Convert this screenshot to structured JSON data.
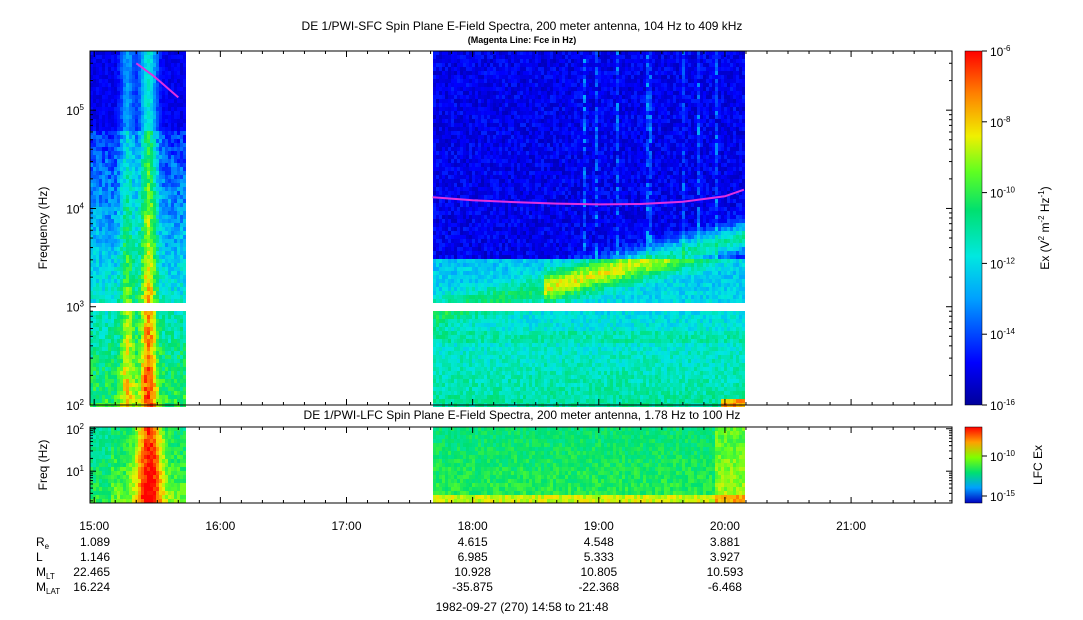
{
  "chart_data": [
    {
      "type": "heatmap",
      "title": "DE 1/PWI-SFC  Spin Plane E-Field Spectra, 200 meter antenna, 104 Hz to 409 kHz",
      "subtitle": "(Magenta Line: Fce in Hz)",
      "ylabel": "Frequency (Hz)",
      "yscale": "log",
      "ylim": [
        100,
        400000
      ],
      "y_ticks": [
        {
          "value": 100,
          "mant": "10",
          "exp": "2"
        },
        {
          "value": 1000,
          "mant": "10",
          "exp": "3"
        },
        {
          "value": 10000,
          "mant": "10",
          "exp": "4"
        },
        {
          "value": 100000,
          "mant": "10",
          "exp": "5"
        }
      ],
      "xlim": [
        "14:58",
        "21:48"
      ],
      "colorbar": {
        "label": "Ex (V",
        "label_sup1": "2",
        "label_mid": " m",
        "label_sup2": "-2",
        "label_mid2": " Hz",
        "label_sup3": "-1",
        "label_end": ")",
        "scale": "log",
        "range": [
          1e-16,
          1e-06
        ],
        "ticks": [
          {
            "value": 1e-06,
            "mant": "10",
            "exp": "-6"
          },
          {
            "value": 1e-08,
            "mant": "10",
            "exp": "-8"
          },
          {
            "value": 1e-10,
            "mant": "10",
            "exp": "-10"
          },
          {
            "value": 1e-12,
            "mant": "10",
            "exp": "-12"
          },
          {
            "value": 1e-14,
            "mant": "10",
            "exp": "-14"
          },
          {
            "value": 1e-16,
            "mant": "10",
            "exp": "-16"
          }
        ]
      },
      "data_intervals": [
        [
          "14:58",
          "15:43"
        ],
        [
          "17:41",
          "20:09"
        ]
      ],
      "fce_line": {
        "color": "#e030e0",
        "segments": [
          {
            "t": [
              "15:20",
              "15:24",
              "15:28",
              "15:32",
              "15:36",
              "15:40"
            ],
            "f": [
              300000,
              260000,
              225000,
              190000,
              160000,
              135000
            ]
          },
          {
            "t": [
              "17:41",
              "18:00",
              "18:20",
              "18:40",
              "19:00",
              "19:20",
              "19:40",
              "20:00",
              "20:09"
            ],
            "f": [
              13000,
              12100,
              11600,
              11200,
              11000,
              11100,
              11700,
              13300,
              15500
            ]
          }
        ]
      }
    },
    {
      "type": "heatmap",
      "title": "DE 1/PWI-LFC  Spin Plane E-Field Spectra, 200 meter antenna, 1.78 Hz to 100 Hz",
      "ylabel": "Freq (Hz)",
      "yscale": "log",
      "ylim": [
        1.78,
        110
      ],
      "y_ticks": [
        {
          "value": 10,
          "mant": "10",
          "exp": "1"
        },
        {
          "value": 100,
          "mant": "10",
          "exp": "2"
        }
      ],
      "colorbar": {
        "label": "LFC Ex",
        "scale": "log",
        "ticks": [
          {
            "value": 1e-10,
            "mant": "10",
            "exp": "-10"
          },
          {
            "value": 1e-15,
            "mant": "10",
            "exp": "-15"
          }
        ]
      },
      "data_intervals": [
        [
          "14:58",
          "15:43"
        ],
        [
          "17:41",
          "20:09"
        ]
      ]
    }
  ],
  "time_axis": {
    "ticks": [
      "15:00",
      "16:00",
      "17:00",
      "18:00",
      "19:00",
      "20:00",
      "21:00"
    ],
    "start": "14:58",
    "end": "21:48"
  },
  "ephemeris": {
    "rows": [
      {
        "label": "R",
        "sub": "e",
        "first": "1.089",
        "values": [
          "4.615",
          "4.548",
          "3.881"
        ]
      },
      {
        "label": "L",
        "sub": "",
        "first": "1.146",
        "values": [
          "6.985",
          "5.333",
          "3.927"
        ]
      },
      {
        "label": "M",
        "sub": "LT",
        "first": "22.465",
        "values": [
          "10.928",
          "10.805",
          "10.593"
        ]
      },
      {
        "label": "M",
        "sub": "LAT",
        "first": "16.224",
        "values": [
          "-35.875",
          "-22.368",
          "-6.468"
        ]
      }
    ],
    "times": [
      "18:00",
      "19:00",
      "20:00"
    ]
  },
  "footer": "1982-09-27 (270) 14:58 to 21:48"
}
